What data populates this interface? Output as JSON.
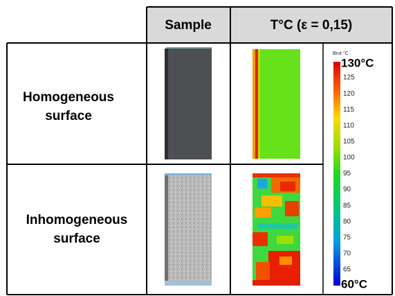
{
  "header": {
    "sample": "Sample",
    "temperature": "T°C (ε = 0,15)"
  },
  "rows": [
    {
      "label": [
        "Homogeneous",
        "surface"
      ]
    },
    {
      "label": [
        "Inhomogeneous",
        "surface"
      ]
    }
  ],
  "colorbar": {
    "caption": "Brut °C",
    "top_label": "130°C",
    "bottom_label": "60°C",
    "ticks": [
      125,
      120,
      115,
      110,
      105,
      100,
      95,
      90,
      85,
      80,
      75,
      70,
      65
    ]
  }
}
